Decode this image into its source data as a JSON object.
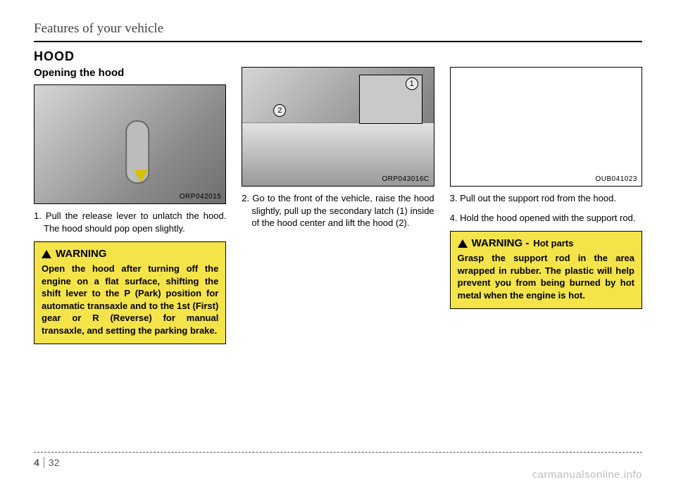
{
  "header": {
    "title": "Features of your vehicle"
  },
  "section": {
    "title": "HOOD"
  },
  "col1": {
    "subheading": "Opening the hood",
    "figure_caption": "ORP042015",
    "step1": "1. Pull the release lever to unlatch the hood. The hood should pop open slightly.",
    "warning": {
      "title": "WARNING",
      "body": "Open the hood after turning off the engine on a flat surface, shifting the shift lever to the P (Park) position for automatic transaxle and to the 1st (First) gear or R (Reverse) for manual transaxle, and setting the parking brake."
    }
  },
  "col2": {
    "figure_caption": "ORP043016C",
    "callout1": "1",
    "callout2": "2",
    "step2": "2. Go to the front of the vehicle, raise the hood slightly, pull up the secondary latch (1) inside of the hood center and lift the hood (2)."
  },
  "col3": {
    "figure_caption": "OUB041023",
    "step3": "3. Pull out the support rod from the hood.",
    "step4": "4. Hold the hood opened with the support rod.",
    "warning": {
      "title": "WARNING -",
      "suffix": "Hot parts",
      "body": "Grasp the support rod in the area wrapped in rubber. The plastic will help prevent you from being burned by hot metal when the engine is hot."
    }
  },
  "footer": {
    "chapter": "4",
    "page": "32"
  },
  "watermark": "carmanualsonline.info",
  "colors": {
    "warning_bg": "#f4e44a",
    "text": "#000000",
    "muted": "#555555",
    "watermark": "#bdbdbd"
  }
}
